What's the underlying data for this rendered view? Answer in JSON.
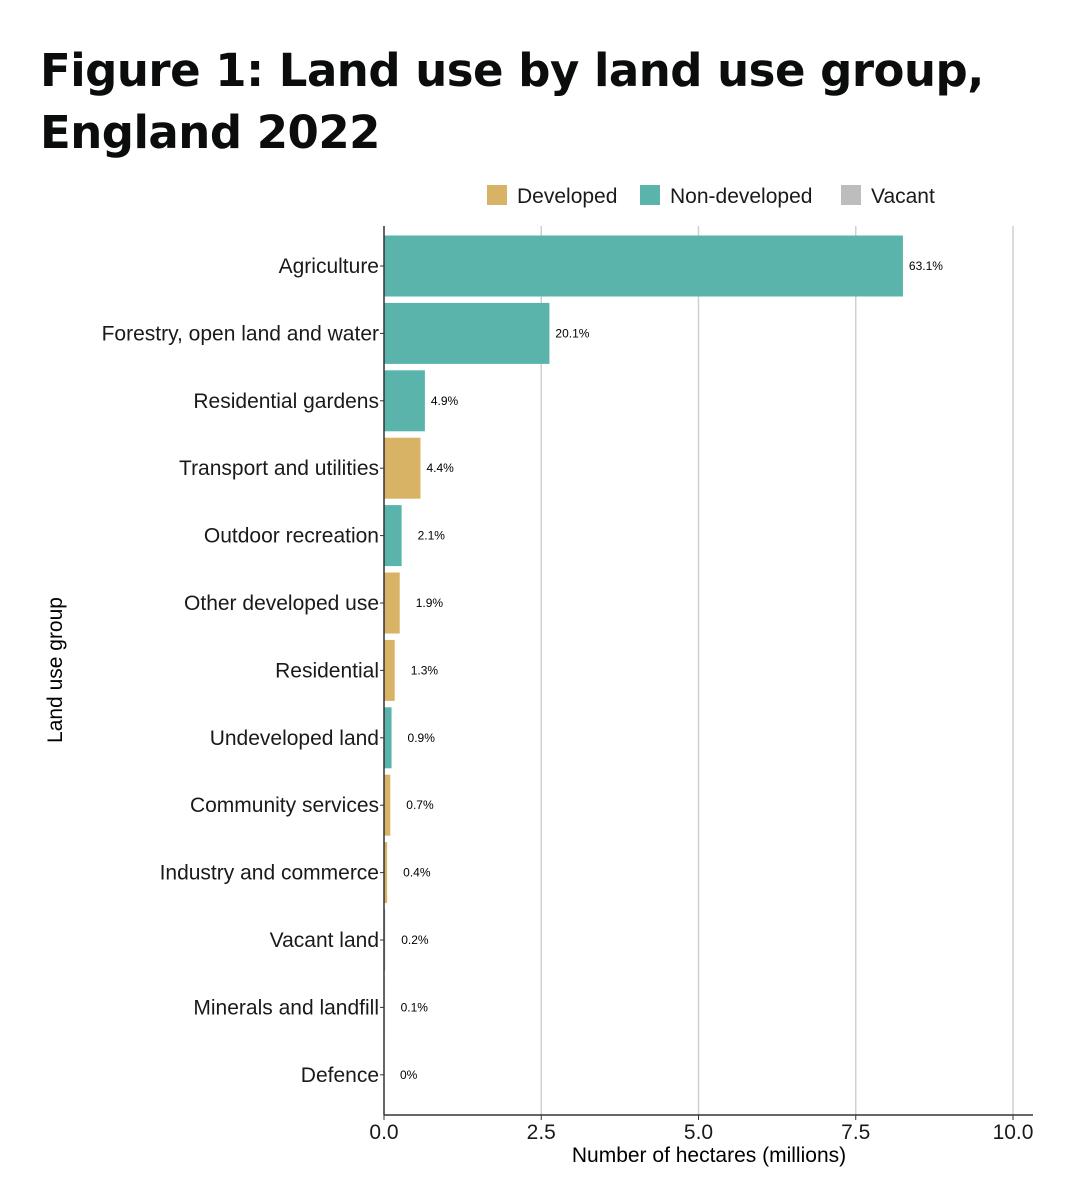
{
  "chart_data": {
    "type": "bar",
    "orientation": "horizontal",
    "title": "Figure 1: Land use by land use group, England 2022",
    "xlabel": "Number of hectares (millions)",
    "ylabel": "Land use group",
    "xlim": [
      0,
      10
    ],
    "xticks": [
      "0.0",
      "2.5",
      "5.0",
      "7.5",
      "10.0"
    ],
    "xtick_values": [
      0,
      2.5,
      5,
      7.5,
      10
    ],
    "grid": true,
    "legend": {
      "position": "top-right",
      "entries": [
        {
          "name": "Developed",
          "color": "#d8b365"
        },
        {
          "name": "Non-developed",
          "color": "#5ab4ac"
        },
        {
          "name": "Vacant",
          "color": "#bdbdbd"
        }
      ]
    },
    "categories": [
      "Agriculture",
      "Forestry, open land and water",
      "Residential gardens",
      "Transport and utilities",
      "Outdoor recreation",
      "Other developed use",
      "Residential",
      "Undeveloped land",
      "Community services",
      "Industry and commerce",
      "Vacant land",
      "Minerals and landfill",
      "Defence"
    ],
    "values": [
      8.25,
      2.63,
      0.65,
      0.58,
      0.28,
      0.25,
      0.17,
      0.12,
      0.1,
      0.05,
      0.02,
      0.01,
      0.0
    ],
    "groups": [
      "Non-developed",
      "Non-developed",
      "Non-developed",
      "Developed",
      "Non-developed",
      "Developed",
      "Developed",
      "Non-developed",
      "Developed",
      "Developed",
      "Vacant",
      "Developed",
      "Developed"
    ],
    "labels": [
      "63.1%",
      "20.1%",
      "4.9%",
      "4.4%",
      "2.1%",
      "1.9%",
      "1.3%",
      "0.9%",
      "0.7%",
      "0.4%",
      "0.2%",
      "0.1%",
      "0%"
    ]
  }
}
